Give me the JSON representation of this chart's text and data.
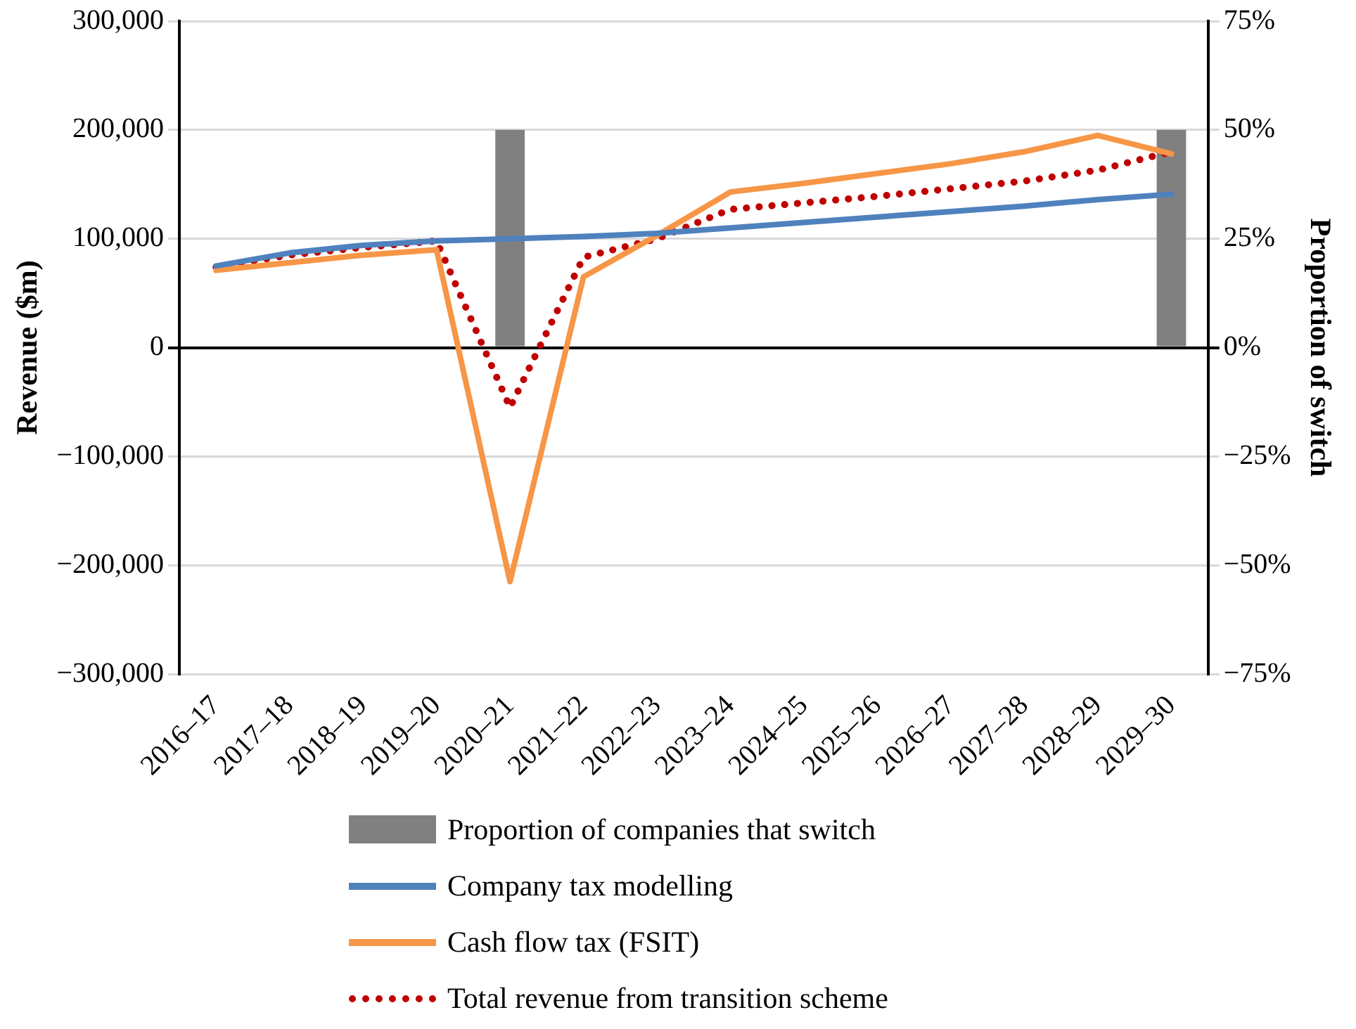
{
  "chart_data": {
    "type": "line",
    "categories": [
      "2016–17",
      "2017–18",
      "2018–19",
      "2019–20",
      "2020–21",
      "2021–22",
      "2022–23",
      "2023–24",
      "2024–25",
      "2025–26",
      "2026–27",
      "2027–28",
      "2028–29",
      "2029–30"
    ],
    "ylabel": "Revenue ($m)",
    "y2label": "Proportion of switch",
    "ylim": [
      -300000,
      300000
    ],
    "yticks": [
      {
        "value": -300000,
        "label": "−300,000"
      },
      {
        "value": -200000,
        "label": "−200,000"
      },
      {
        "value": -100000,
        "label": "−100,000"
      },
      0,
      {
        "value": 100000,
        "label": "100,000"
      },
      {
        "value": 200000,
        "label": "200,000"
      },
      {
        "value": 300000,
        "label": "300,000"
      }
    ],
    "y2lim": [
      -75,
      75
    ],
    "y2ticks": [
      {
        "value": -75,
        "label": "−75%"
      },
      {
        "value": -50,
        "label": "−50%"
      },
      {
        "value": -25,
        "label": "−25%"
      },
      {
        "value": 0,
        "label": "0%"
      },
      {
        "value": 25,
        "label": "25%"
      },
      {
        "value": 50,
        "label": "50%"
      },
      {
        "value": 75,
        "label": "75%"
      }
    ],
    "grid": "y",
    "legend": "bottom",
    "marker": "none",
    "series": [
      {
        "name": "Proportion of companies that switch",
        "type": "bar",
        "axis": "y2",
        "color": "#808080",
        "values": [
          null,
          null,
          null,
          null,
          50,
          null,
          null,
          null,
          null,
          null,
          null,
          null,
          null,
          50
        ]
      },
      {
        "name": "Company tax modelling",
        "color": "#4f81bd",
        "line_style": "solid",
        "values": [
          75000,
          87000,
          94000,
          98000,
          100000,
          102000,
          105000,
          110000,
          115000,
          120000,
          125000,
          130000,
          136000,
          141000
        ]
      },
      {
        "name": "Cash flow tax (FSIT)",
        "color": "#f79646",
        "line_style": "solid",
        "values": [
          71000,
          78000,
          85000,
          90000,
          -215000,
          65000,
          103000,
          143000,
          151000,
          160000,
          169000,
          180000,
          195000,
          178000
        ]
      },
      {
        "name": "Total revenue from transition scheme",
        "color": "#c00000",
        "line_style": "dotted",
        "values": [
          74000,
          85000,
          92000,
          98000,
          -55000,
          83000,
          100000,
          127000,
          133000,
          139000,
          146000,
          153000,
          163000,
          180000
        ]
      }
    ]
  }
}
